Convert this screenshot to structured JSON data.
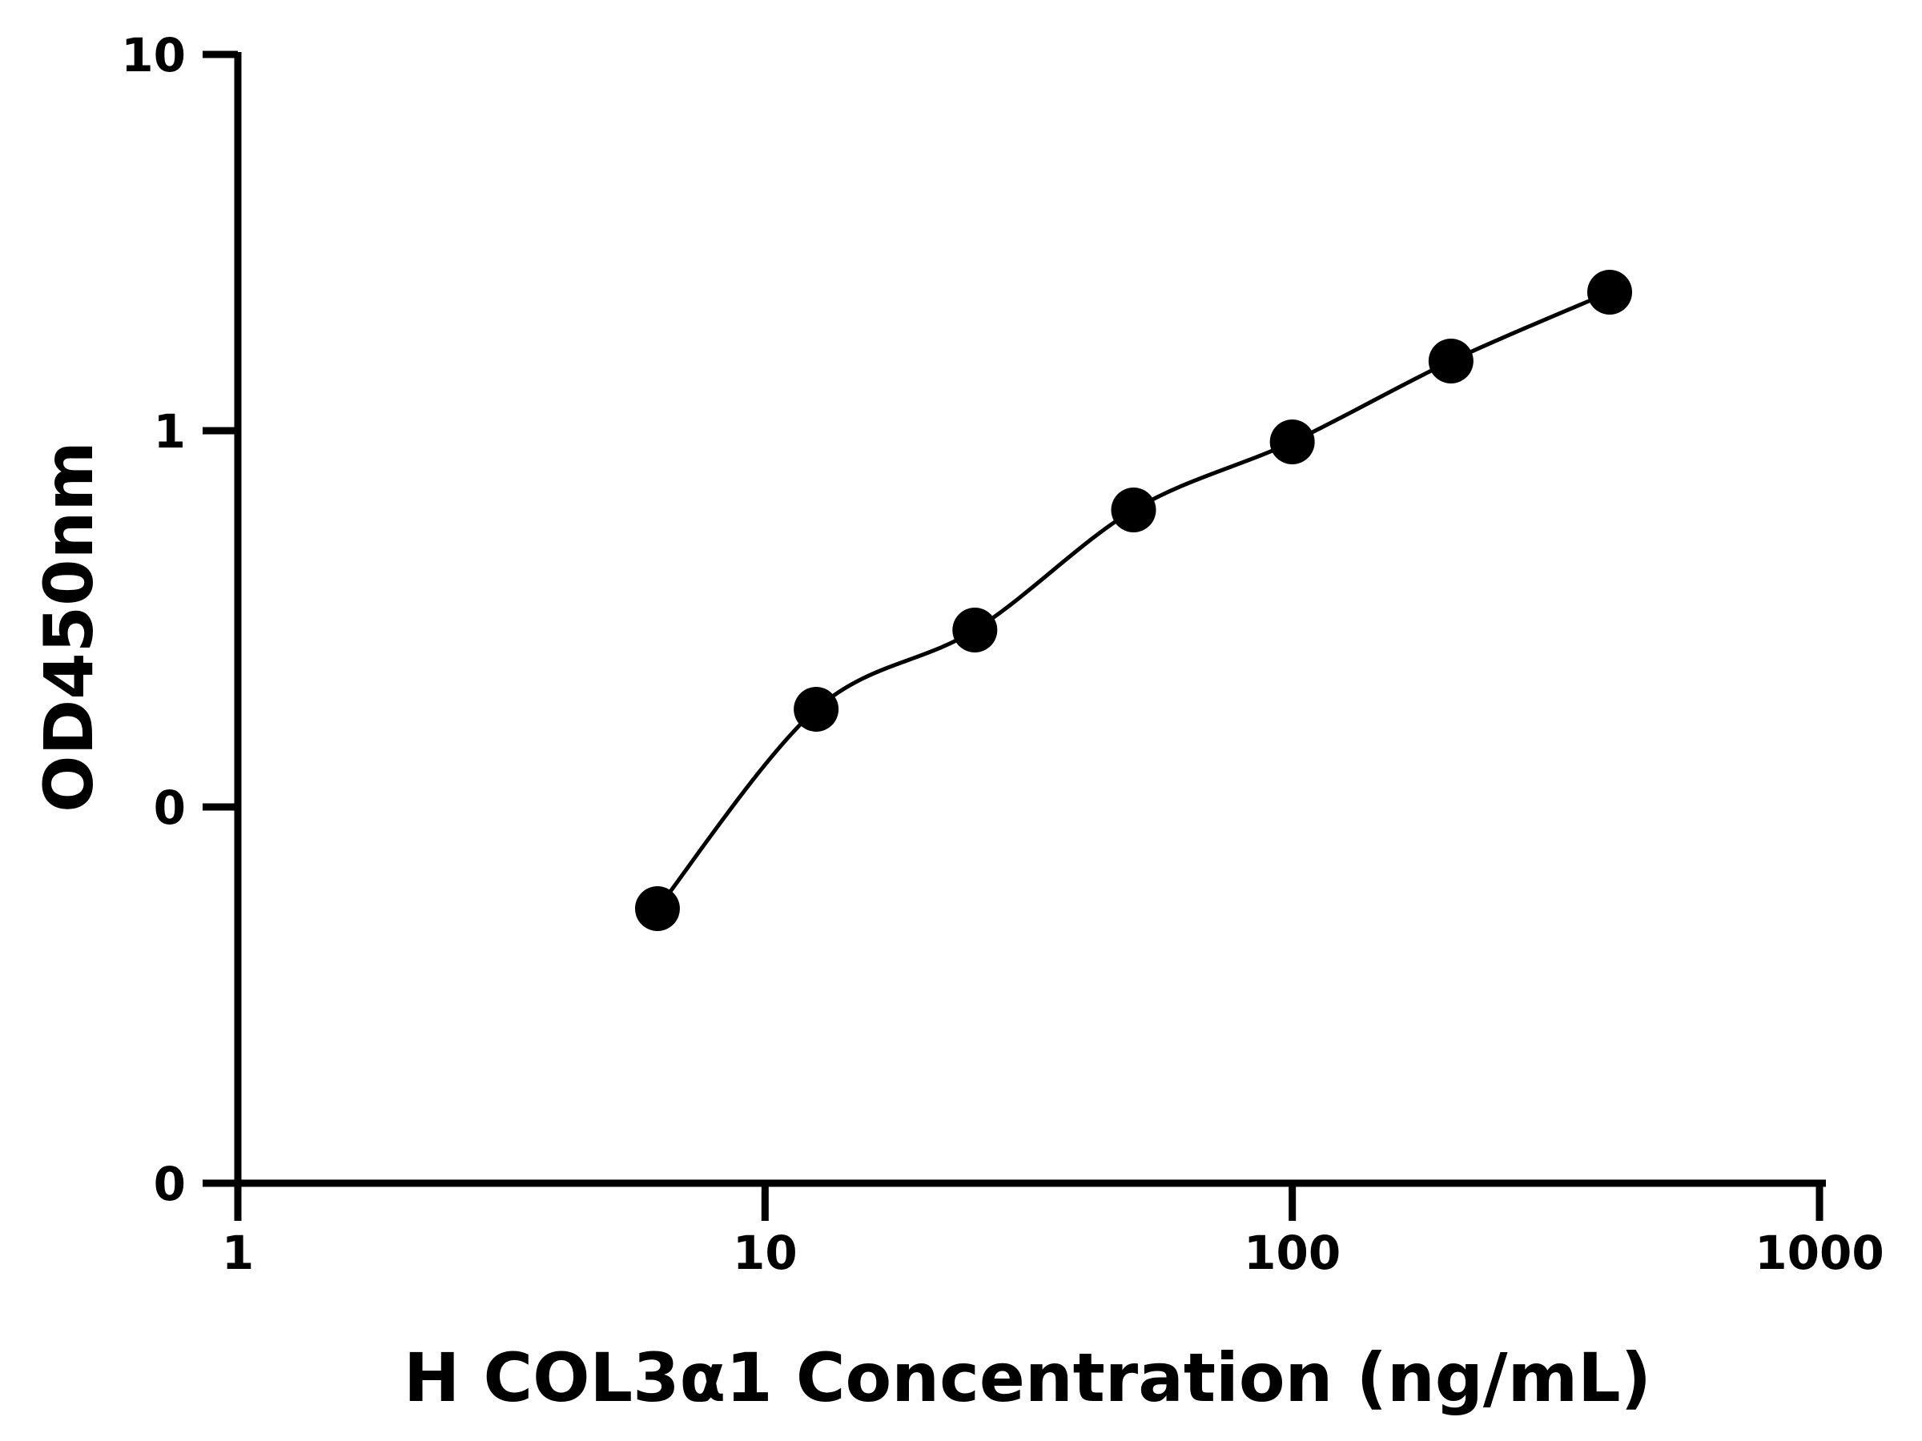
{
  "chart_data": {
    "type": "scatter",
    "title": "",
    "xlabel": "H COL3α1 Concentration (ng/mL)",
    "ylabel": "OD450nm",
    "x_scale": "log",
    "x_ticks": [
      {
        "value": 1,
        "label": "1"
      },
      {
        "value": 10,
        "label": "10"
      },
      {
        "value": 100,
        "label": "100"
      },
      {
        "value": 1000,
        "label": "1000"
      }
    ],
    "y_tick_labels": [
      "0",
      "0",
      "1",
      "10"
    ],
    "xlim": [
      1,
      1000
    ],
    "grid": false,
    "series": [
      {
        "x": [
          6.25,
          12.5,
          25,
          50,
          100,
          200,
          400
        ],
        "y": [
          0.0733,
          0.264,
          0.484,
          0.791,
          0.975,
          1.65,
          2.59
        ],
        "marker": "circle",
        "fit_line": true
      }
    ],
    "colors": {
      "points": "#000000",
      "line": "#000000",
      "axes": "#000000"
    }
  }
}
